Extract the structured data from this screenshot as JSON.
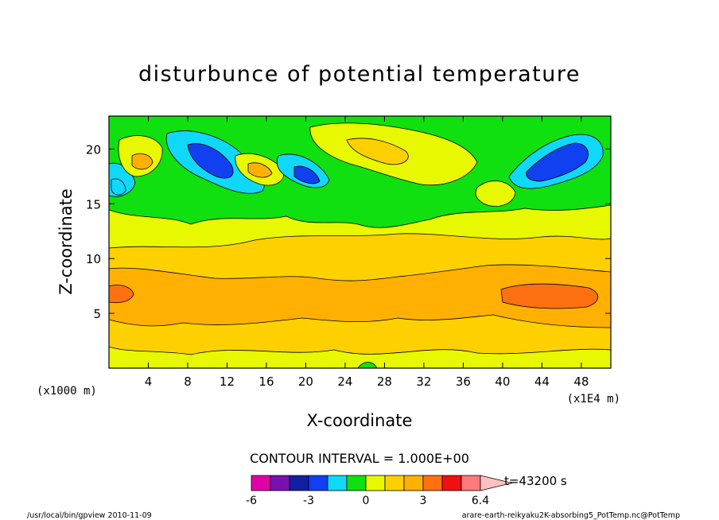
{
  "chart_data": {
    "type": "heatmap",
    "title": "disturbunce of potential temperature",
    "xlabel": "X-coordinate",
    "ylabel": "Z-coordinate",
    "x_unit_label": "(x1000 m)",
    "x_scale_label": "(x1E4 m)",
    "xlim": [
      0,
      51
    ],
    "ylim": [
      0,
      23
    ],
    "x_ticks": [
      4,
      8,
      12,
      16,
      20,
      24,
      28,
      32,
      36,
      40,
      44,
      48
    ],
    "y_ticks": [
      5,
      10,
      15,
      20
    ],
    "contour_interval_text": "CONTOUR INTERVAL = 1.000E+00",
    "time_text": "t=43200 s",
    "colorbar": {
      "levels": [
        -6,
        -5,
        -4,
        -3,
        -2,
        -1,
        0,
        1,
        2,
        3,
        4,
        5,
        6.4
      ],
      "tick_labels": [
        "-6",
        "-3",
        "0",
        "3",
        "6.4"
      ],
      "tick_values": [
        -6,
        -3,
        0,
        3,
        6.4
      ],
      "colors": [
        "#e000a8",
        "#7a10b0",
        "#1020a0",
        "#1040f0",
        "#10d8f8",
        "#10e010",
        "#e8f800",
        "#ffd000",
        "#ffb000",
        "#ff7010",
        "#f01010",
        "#ff7a7a",
        "#ffc0c0"
      ]
    }
  },
  "footer": {
    "left": "/usr/local/bin/gpview  2010-11-09",
    "right": "arare-earth-reikyaku2K-absorbing5_PotTemp.nc@PotTemp"
  }
}
